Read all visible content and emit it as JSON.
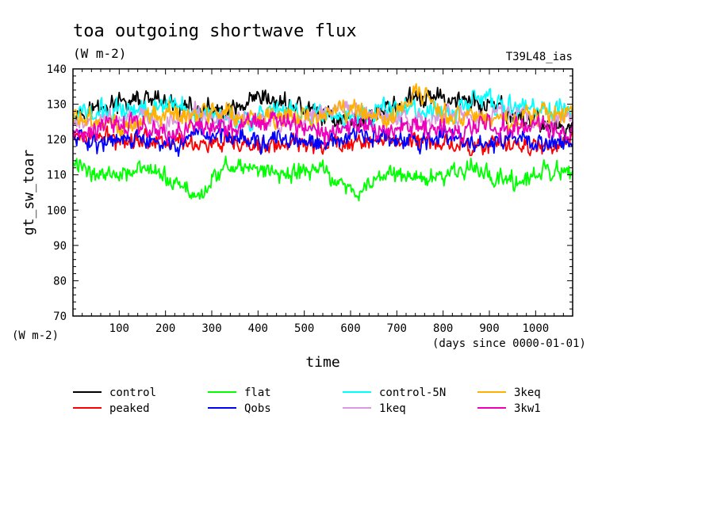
{
  "chart_data": {
    "type": "line",
    "title": "toa outgoing shortwave flux",
    "subtitle": "(W m-2)",
    "run_label": "T39L48_ias",
    "xlabel": "time",
    "xunits": "(days since 0000-01-01)",
    "ylabel": "gt_sw_toar",
    "yunits": "(W m-2)",
    "xlim": [
      0,
      1080
    ],
    "ylim": [
      70,
      140
    ],
    "x_ticks": [
      100,
      200,
      300,
      400,
      500,
      600,
      700,
      800,
      900,
      1000
    ],
    "y_ticks": [
      70,
      80,
      90,
      100,
      110,
      120,
      130,
      140
    ],
    "grid": false,
    "legend_position": "bottom",
    "series": [
      {
        "name": "control",
        "color": "#000000",
        "mean": 124.5,
        "amplitude": 4.0,
        "drawn_values": [
          128,
          129,
          131,
          130,
          128,
          127,
          131,
          130,
          127,
          125,
          129,
          131,
          132,
          130,
          127,
          125,
          123
        ]
      },
      {
        "name": "peaked",
        "color": "#ff0000",
        "mean": 122.0,
        "amplitude": 3.5,
        "drawn_values": [
          121,
          120,
          118,
          119,
          120,
          118,
          119
        ]
      },
      {
        "name": "flat",
        "color": "#00ff00",
        "mean": 111.0,
        "amplitude": 3.5,
        "drawn_values": [
          113,
          110,
          112,
          109,
          104,
          113,
          111,
          110,
          112,
          104,
          111,
          109,
          110,
          112,
          108,
          110,
          111
        ]
      },
      {
        "name": "Qobs",
        "color": "#0000ff",
        "mean": 121.0,
        "amplitude": 3.5,
        "drawn_values": [
          121,
          119,
          120,
          118,
          120,
          122,
          119,
          120,
          118,
          121,
          120,
          119,
          121,
          118,
          120,
          119,
          120
        ]
      },
      {
        "name": "control-5N",
        "color": "#00ffff",
        "mean": 126.0,
        "amplitude": 4.0,
        "drawn_values": [
          127,
          128,
          129,
          130,
          128,
          127,
          126,
          128,
          127,
          126,
          129,
          128,
          127,
          132,
          129,
          128,
          128
        ]
      },
      {
        "name": "1keq",
        "color": "#dd99dd",
        "mean": 124.5,
        "amplitude": 3.5,
        "drawn_values": [
          124,
          125,
          126,
          125,
          127,
          126,
          125,
          124,
          128,
          129,
          126,
          125,
          127,
          126,
          128,
          125,
          126
        ]
      },
      {
        "name": "3keq",
        "color": "#ffb000",
        "mean": 125.5,
        "amplitude": 4.0,
        "drawn_values": [
          126,
          124,
          125,
          127,
          126,
          128,
          125,
          127,
          126,
          128,
          125,
          133,
          127,
          126,
          125,
          127,
          128
        ]
      },
      {
        "name": "3kw1",
        "color": "#ee00bb",
        "mean": 123.5,
        "amplitude": 4.0,
        "drawn_values": [
          123,
          124,
          125,
          122,
          124,
          123,
          125,
          124,
          122,
          124,
          123,
          125,
          122,
          124,
          123,
          124,
          122
        ]
      }
    ]
  }
}
